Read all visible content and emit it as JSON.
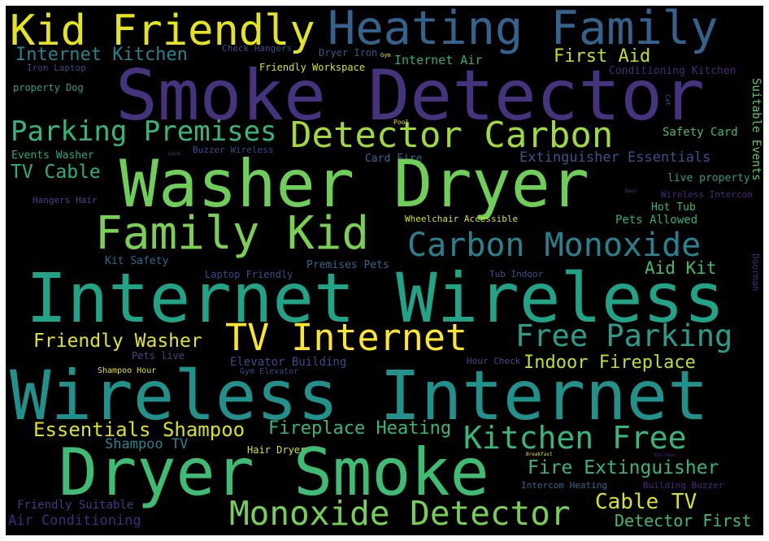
{
  "palette": {
    "yellow": "#fde725",
    "lime": "#b5de2b",
    "green": "#6ece58",
    "mint": "#35b779",
    "teal": "#1f9e89",
    "cyan": "#26828e",
    "steel": "#31688e",
    "indigo": "#3e4989",
    "purple": "#482878",
    "dark": "#440154"
  },
  "words": [
    {
      "text": "Kid Friendly",
      "color": "#e4e419"
    },
    {
      "text": "Heating Family",
      "color": "#33638d"
    },
    {
      "text": "Internet Kitchen",
      "color": "#26828e"
    },
    {
      "text": "Check Hangers",
      "color": "#3e4989"
    },
    {
      "text": "Dryer Iron",
      "color": "#3b528b"
    },
    {
      "text": "Gym",
      "color": "#d8e219"
    },
    {
      "text": "Internet Air",
      "color": "#29af7f"
    },
    {
      "text": "First Aid",
      "color": "#c2df23"
    },
    {
      "text": "Iron Laptop",
      "color": "#3e4989"
    },
    {
      "text": "Friendly Workspace",
      "color": "#d8e219"
    },
    {
      "text": "Conditioning Kitchen",
      "color": "#482878"
    },
    {
      "text": "Smoke Detector",
      "color": "#46337e"
    },
    {
      "text": "property Dog",
      "color": "#2a9d8a"
    },
    {
      "text": "Cat",
      "color": "#3e4989"
    },
    {
      "text": "Suitable Events",
      "color": "#5ec962"
    },
    {
      "text": "Parking Premises",
      "color": "#35b779"
    },
    {
      "text": "Pool",
      "color": "#e5e419"
    },
    {
      "text": "Detector Carbon",
      "color": "#a0da39"
    },
    {
      "text": "Safety Card",
      "color": "#3fbc73"
    },
    {
      "text": "Events Washer",
      "color": "#22a884"
    },
    {
      "text": "Lock",
      "color": "#3e4989"
    },
    {
      "text": "Buzzer Wireless",
      "color": "#3e4989"
    },
    {
      "text": "Card Fire",
      "color": "#31688e"
    },
    {
      "text": "Extinguisher Essentials",
      "color": "#3b528b"
    },
    {
      "text": "TV Cable",
      "color": "#29af7f"
    },
    {
      "text": "live property",
      "color": "#2a9d8a"
    },
    {
      "text": "Washer Dryer",
      "color": "#6ece58"
    },
    {
      "text": "Hangers Hair",
      "color": "#3e4989"
    },
    {
      "text": "Door",
      "color": "#3e4989"
    },
    {
      "text": "Wireless Intercom",
      "color": "#482878"
    },
    {
      "text": "Hot Tub",
      "color": "#35b779"
    },
    {
      "text": "Wheelchair Accessible",
      "color": "#d8e219"
    },
    {
      "text": "Family Kid",
      "color": "#7ad151"
    },
    {
      "text": "Pets Allowed",
      "color": "#29af7f"
    },
    {
      "text": "Carbon Monoxide",
      "color": "#26828e"
    },
    {
      "text": "Kit Safety",
      "color": "#31688e"
    },
    {
      "text": "Aid Kit",
      "color": "#3fbc73"
    },
    {
      "text": "Premises Pets",
      "color": "#31688e"
    },
    {
      "text": "Laptop Friendly",
      "color": "#3e4989"
    },
    {
      "text": "Tub Indoor",
      "color": "#3b528b"
    },
    {
      "text": "Doorman",
      "color": "#482878"
    },
    {
      "text": "Internet Wireless",
      "color": "#20a386"
    },
    {
      "text": "Friendly Washer",
      "color": "#e2e418"
    },
    {
      "text": "TV Internet",
      "color": "#fde725"
    },
    {
      "text": "Free Parking",
      "color": "#2a9d8a"
    },
    {
      "text": "Pets live",
      "color": "#3e4989"
    },
    {
      "text": "Elevator Building",
      "color": "#3e4989"
    },
    {
      "text": "Hour Check",
      "color": "#3e4989"
    },
    {
      "text": "Indoor Fireplace",
      "color": "#c2df23"
    },
    {
      "text": "Shampoo Hour",
      "color": "#e5e419"
    },
    {
      "text": "Gym Elevator",
      "color": "#3e4989"
    },
    {
      "text": "Wireless Internet",
      "color": "#21918c"
    },
    {
      "text": "Essentials Shampoo",
      "color": "#d8e219"
    },
    {
      "text": "Fireplace Heating",
      "color": "#35b779"
    },
    {
      "text": "Kitchen Free",
      "color": "#35b779"
    },
    {
      "text": "Shampoo TV",
      "color": "#26828e"
    },
    {
      "text": "Hair Dryer",
      "color": "#d8e219"
    },
    {
      "text": "Breakfast",
      "color": "#d8e219"
    },
    {
      "text": "Doorman",
      "color": "#482878"
    },
    {
      "text": "Dryer Smoke",
      "color": "#3fbc73"
    },
    {
      "text": "Fire Extinguisher",
      "color": "#35b779"
    },
    {
      "text": "Intercom Heating",
      "color": "#31688e"
    },
    {
      "text": "Building Buzzer",
      "color": "#482878"
    },
    {
      "text": "Cable TV",
      "color": "#d8e219"
    },
    {
      "text": "Friendly Suitable",
      "color": "#443983"
    },
    {
      "text": "Air Conditioning",
      "color": "#482878"
    },
    {
      "text": "Monoxide Detector",
      "color": "#75d054"
    },
    {
      "text": "Detector First",
      "color": "#3fbc73"
    }
  ]
}
